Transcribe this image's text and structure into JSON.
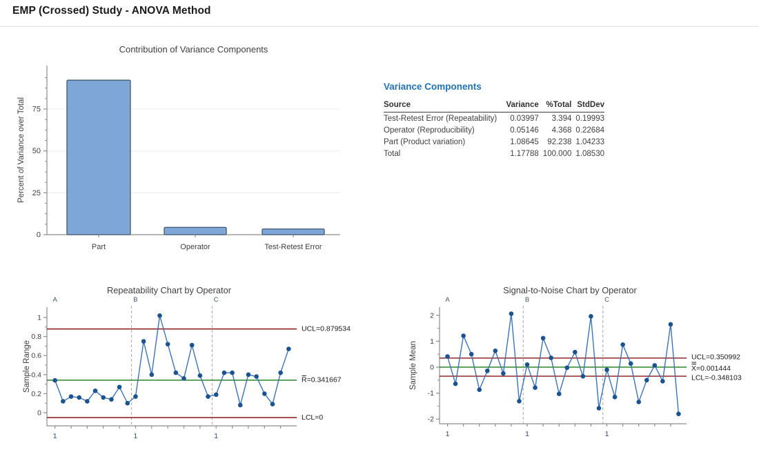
{
  "page": {
    "title": "EMP (Crossed) Study - ANOVA Method"
  },
  "variance_table": {
    "title": "Variance Components",
    "columns": [
      "Source",
      "Variance",
      "%Total",
      "StdDev"
    ],
    "rows": [
      [
        "Test-Retest Error (Repeatability)",
        "0.03997",
        "3.394",
        "0.19993"
      ],
      [
        "Operator (Reproducibility)",
        "0.05146",
        "4.368",
        "0.22684"
      ],
      [
        "Part (Product variation)",
        "1.08645",
        "92.238",
        "1.04233"
      ],
      [
        "Total",
        "1.17788",
        "100.000",
        "1.08530"
      ]
    ]
  },
  "colors": {
    "heading_blue": "#2173b4",
    "bar_fill": "#7ea7d8",
    "bar_stroke": "#42566c",
    "series_line": "#3a72b6",
    "series_marker": "#1b5391",
    "control_limit_red": "#8b1212",
    "center_line_green": "#157a15",
    "axis_gray": "#8c8c8c",
    "grid_gray": "#ebebeb",
    "divider_dash_gray": "#a6a6a6",
    "tick_text": "#3d3d3d",
    "title_text": "#3f3f3f",
    "operator_label": "#44566b",
    "x_one_label": "#2e4a6b"
  },
  "chart_data": [
    {
      "type": "bar",
      "title": "Contribution of Variance Components",
      "ylabel": "Percent of Variance over Total",
      "xlabel": "",
      "categories": [
        "Part",
        "Operator",
        "Test-Retest Error"
      ],
      "values": [
        92.238,
        4.368,
        3.394
      ],
      "yticks": [
        0,
        25,
        50,
        75
      ],
      "ylim": [
        0,
        97
      ],
      "grid": true,
      "legend": "none"
    },
    {
      "type": "line",
      "title": "Repeatability Chart by Operator",
      "ylabel": "Sample Range",
      "xlabel": "",
      "groups": [
        "A",
        "B",
        "C"
      ],
      "x_group_start_label": "1",
      "series": [
        {
          "name": "Sample Range",
          "values": [
            0.34,
            0.12,
            0.17,
            0.16,
            0.12,
            0.23,
            0.16,
            0.14,
            0.27,
            0.1,
            0.17,
            0.75,
            0.4,
            1.02,
            0.72,
            0.42,
            0.36,
            0.71,
            0.39,
            0.17,
            0.19,
            0.42,
            0.42,
            0.08,
            0.4,
            0.38,
            0.2,
            0.09,
            0.42,
            0.67
          ]
        }
      ],
      "yticks": [
        0,
        0.2,
        0.4,
        0.6,
        0.8,
        1
      ],
      "ylim": [
        -0.12,
        1.1
      ],
      "grid": false,
      "lines": [
        {
          "label": "UCL=0.879534",
          "value": 0.879534,
          "kind": "ucl",
          "overbar": 0,
          "color": "#8b1212"
        },
        {
          "label": "R=0.341667",
          "value": 0.341667,
          "kind": "center",
          "overbar": 1,
          "color": "#157a15"
        },
        {
          "label": "LCL=0",
          "value": 0,
          "kind": "lcl",
          "overbar": 0,
          "color": "#8b1212"
        }
      ]
    },
    {
      "type": "line",
      "title": "Signal-to-Noise Chart by Operator",
      "ylabel": "Sample Mean",
      "xlabel": "",
      "groups": [
        "A",
        "B",
        "C"
      ],
      "x_group_start_label": "1",
      "series": [
        {
          "name": "Sample Mean",
          "values": [
            0.41,
            -0.64,
            1.21,
            0.5,
            -0.87,
            -0.14,
            0.63,
            -0.24,
            2.06,
            -1.31,
            0.1,
            -0.79,
            1.12,
            0.36,
            -1.03,
            -0.02,
            0.58,
            -0.35,
            1.96,
            -1.58,
            -0.1,
            -1.15,
            0.87,
            0.14,
            -1.34,
            -0.5,
            0.07,
            -0.54,
            1.65,
            -1.8
          ]
        }
      ],
      "yticks": [
        -2,
        -1,
        0,
        1,
        2
      ],
      "ylim": [
        -2.3,
        2.32
      ],
      "grid": false,
      "lines": [
        {
          "label": "UCL=0.350992",
          "value": 0.350992,
          "kind": "ucl",
          "overbar": 0,
          "color": "#8b1212"
        },
        {
          "label": "X=0.001444",
          "value": 0.001444,
          "kind": "center",
          "overbar": 2,
          "color": "#157a15"
        },
        {
          "label": "LCL=-0.348103",
          "value": -0.348103,
          "kind": "lcl",
          "overbar": 0,
          "color": "#8b1212"
        }
      ]
    }
  ]
}
